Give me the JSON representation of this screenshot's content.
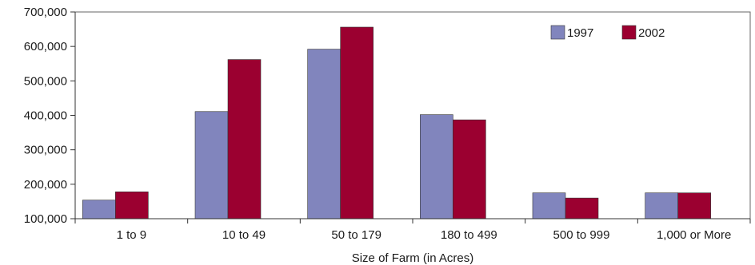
{
  "colors": {
    "series_1997": "#8185bd",
    "series_2002": "#9b0030",
    "axis": "#333333",
    "plot_border": "#666666"
  },
  "chart_data": {
    "type": "bar",
    "title": "",
    "xlabel": "Size of Farm (in Acres)",
    "ylabel": "",
    "ylim": [
      100000,
      700000
    ],
    "yticks": [
      100000,
      200000,
      300000,
      400000,
      500000,
      600000,
      700000
    ],
    "ytick_labels": [
      "100,000",
      "200,000",
      "300,000",
      "400,000",
      "500,000",
      "600,000",
      "700,000"
    ],
    "categories": [
      "1 to 9",
      "10 to 49",
      "50 to 179",
      "180 to 499",
      "500 to 999",
      "1,000 or More"
    ],
    "series": [
      {
        "name": "1997",
        "color": "#8185bd",
        "values": [
          154000,
          411000,
          592000,
          402000,
          175000,
          175000
        ]
      },
      {
        "name": "2002",
        "color": "#9b0030",
        "values": [
          178000,
          562000,
          656000,
          387000,
          160000,
          175000
        ]
      }
    ],
    "legend_position": "top-right",
    "grid": false
  }
}
